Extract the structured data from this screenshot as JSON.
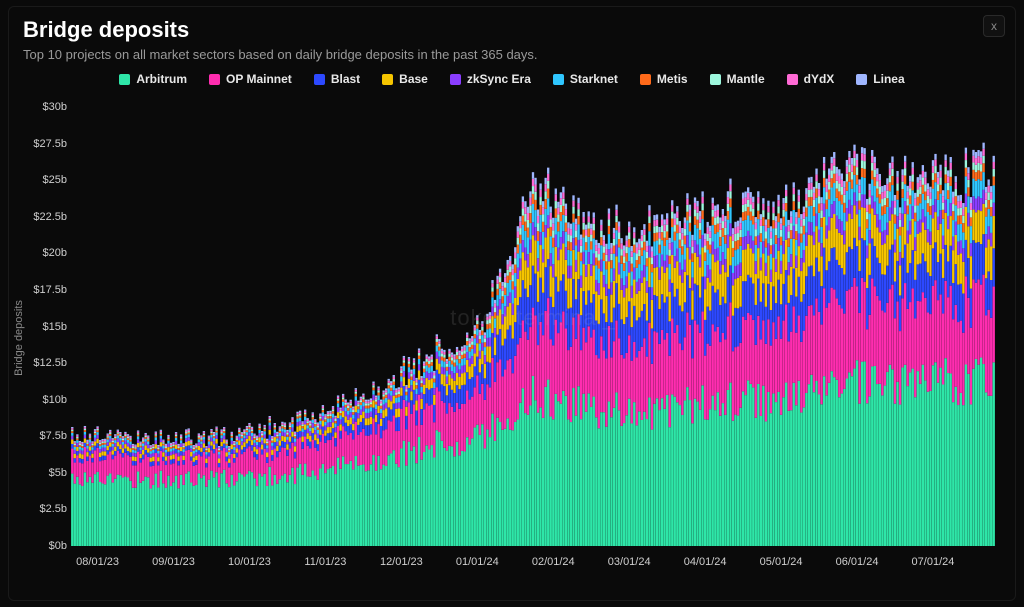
{
  "header": {
    "title": "Bridge deposits",
    "subtitle": "Top 10 projects on all market sectors based on daily bridge deposits in the past 365 days.",
    "close_label": "x"
  },
  "watermark": "token terminal_",
  "chart": {
    "type": "stacked-bar",
    "background_color": "#0a0a0a",
    "grid_color": "#1a1a1a",
    "axis_font_size": 11,
    "axis_color": "#cfcfcf",
    "yaxis_label": "Bridge deposits",
    "ylim": [
      0,
      30
    ],
    "ytick_step": 2.5,
    "ytick_prefix": "$",
    "ytick_suffix": "b",
    "bar_gap_ratio": 0.08,
    "series": [
      {
        "name": "Arbitrum",
        "color": "#2ee6a8"
      },
      {
        "name": "OP Mainnet",
        "color": "#ff2db0"
      },
      {
        "name": "Blast",
        "color": "#2d49ff"
      },
      {
        "name": "Base",
        "color": "#f6c500"
      },
      {
        "name": "zkSync Era",
        "color": "#8a3dff"
      },
      {
        "name": "Starknet",
        "color": "#2fc6ff"
      },
      {
        "name": "Metis",
        "color": "#ff6a1a"
      },
      {
        "name": "Mantle",
        "color": "#9df7dd"
      },
      {
        "name": "dYdX",
        "color": "#ff6ad5"
      },
      {
        "name": "Linea",
        "color": "#9fb6ff"
      }
    ],
    "x_labels": [
      "08/01/23",
      "09/01/23",
      "10/01/23",
      "11/01/23",
      "12/01/23",
      "01/01/24",
      "02/01/24",
      "03/01/24",
      "04/01/24",
      "05/01/24",
      "06/01/24",
      "07/01/24"
    ],
    "x_label_every": 30,
    "x_label_offset": 10,
    "base_curves": {
      "arbitrum": {
        "keys": [
          4.7,
          4.6,
          4.5,
          4.6,
          4.8,
          5.2,
          6.0,
          6.8,
          7.5,
          10.2,
          9.5,
          9.2,
          9.6,
          10.0,
          9.8,
          11.2,
          10.8,
          11.2,
          11.5
        ],
        "jitter": 0.15
      },
      "op": {
        "keys": [
          1.6,
          1.5,
          1.4,
          1.5,
          1.7,
          2.0,
          2.3,
          2.7,
          3.1,
          5.3,
          4.7,
          4.6,
          4.8,
          5.0,
          4.8,
          5.7,
          5.3,
          5.4,
          5.6
        ],
        "jitter": 0.12
      },
      "blast": {
        "keys": [
          0.3,
          0.3,
          0.3,
          0.3,
          0.4,
          0.5,
          0.8,
          1.1,
          1.4,
          3.0,
          2.5,
          2.4,
          2.5,
          2.6,
          2.5,
          2.8,
          2.6,
          2.6,
          2.7
        ],
        "jitter": 0.07
      },
      "base": {
        "keys": [
          0.3,
          0.3,
          0.3,
          0.3,
          0.35,
          0.4,
          0.5,
          0.7,
          0.9,
          2.2,
          1.9,
          1.9,
          2.0,
          2.1,
          2.0,
          2.2,
          2.1,
          2.1,
          2.2
        ],
        "jitter": 0.06
      },
      "zksync": {
        "keys": [
          0.25,
          0.25,
          0.25,
          0.25,
          0.28,
          0.32,
          0.38,
          0.45,
          0.55,
          0.9,
          0.8,
          0.8,
          0.85,
          0.88,
          0.85,
          0.92,
          0.88,
          0.9,
          0.92
        ],
        "jitter": 0.04
      },
      "starknet": {
        "keys": [
          0.2,
          0.2,
          0.2,
          0.2,
          0.22,
          0.26,
          0.32,
          0.4,
          0.5,
          1.2,
          1.0,
          1.0,
          1.05,
          1.1,
          1.05,
          1.2,
          1.1,
          1.12,
          1.18
        ],
        "jitter": 0.05
      },
      "metis": {
        "keys": [
          0.12,
          0.12,
          0.12,
          0.12,
          0.14,
          0.16,
          0.2,
          0.25,
          0.3,
          0.7,
          0.55,
          0.55,
          0.58,
          0.6,
          0.58,
          0.65,
          0.6,
          0.6,
          0.62
        ],
        "jitter": 0.03
      },
      "mantle": {
        "keys": [
          0.1,
          0.1,
          0.1,
          0.1,
          0.11,
          0.13,
          0.16,
          0.2,
          0.25,
          0.55,
          0.45,
          0.45,
          0.47,
          0.5,
          0.47,
          0.55,
          0.5,
          0.5,
          0.52
        ],
        "jitter": 0.03
      },
      "dydx": {
        "keys": [
          0.1,
          0.1,
          0.1,
          0.1,
          0.11,
          0.12,
          0.14,
          0.17,
          0.2,
          0.5,
          0.4,
          0.4,
          0.42,
          0.45,
          0.42,
          0.5,
          0.45,
          0.45,
          0.47
        ],
        "jitter": 0.03
      },
      "linea": {
        "keys": [
          0.08,
          0.08,
          0.08,
          0.08,
          0.09,
          0.1,
          0.12,
          0.14,
          0.17,
          0.45,
          0.35,
          0.35,
          0.37,
          0.4,
          0.37,
          0.45,
          0.4,
          0.4,
          0.42
        ],
        "jitter": 0.03
      }
    },
    "n_points": 365,
    "rand_seed": 17
  }
}
